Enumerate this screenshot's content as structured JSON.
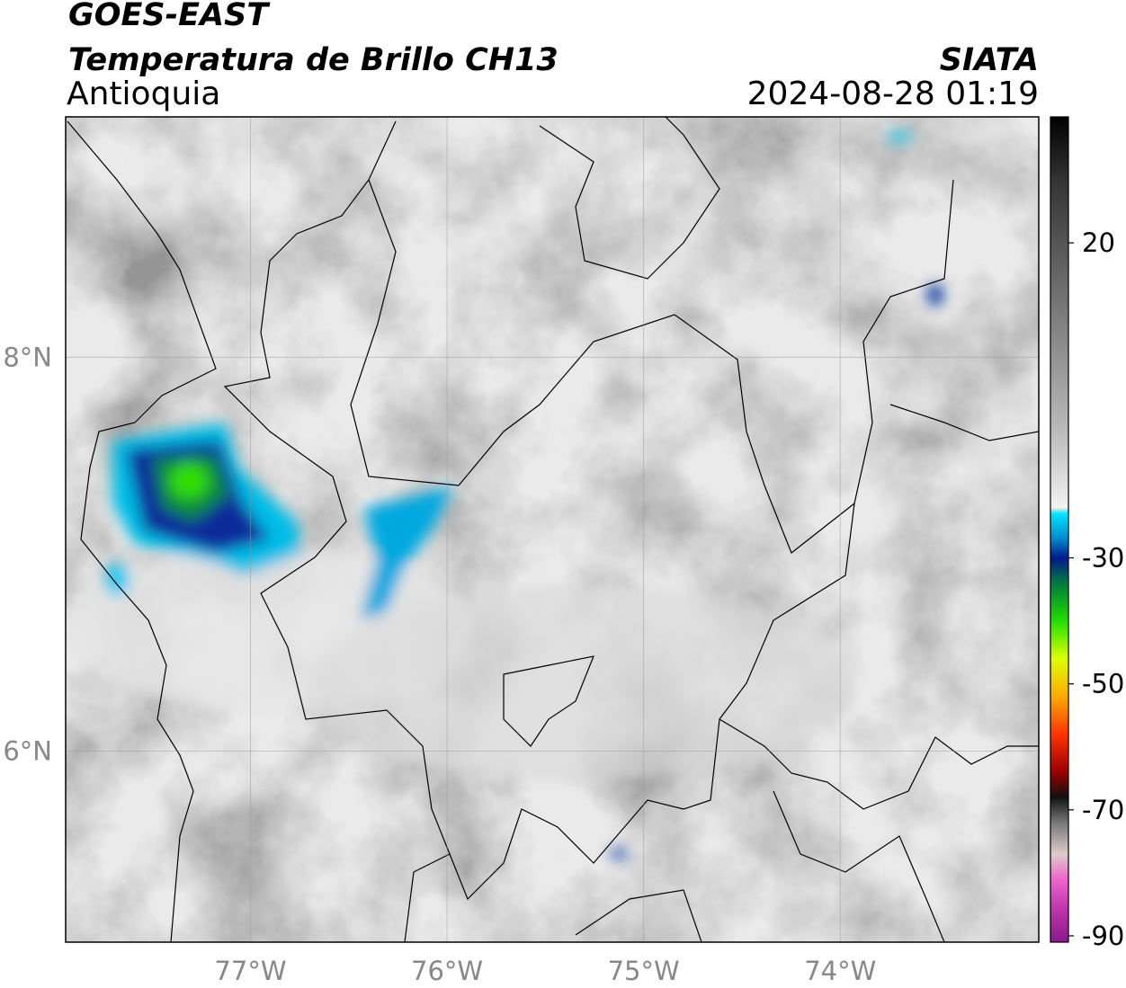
{
  "header": {
    "title": "GOES-EAST",
    "subtitle": "Temperatura de Brillo CH13",
    "region": "Antioquia",
    "source": "SIATA",
    "datetime": "2024-08-28 01:19"
  },
  "map": {
    "xlim": [
      -77.94,
      -72.99
    ],
    "ylim": [
      5.03,
      9.22
    ],
    "grid": true,
    "xticks": [
      {
        "value": -77,
        "label": "77°W"
      },
      {
        "value": -76,
        "label": "76°W"
      },
      {
        "value": -75,
        "label": "75°W"
      },
      {
        "value": -74,
        "label": "74°W"
      }
    ],
    "yticks": [
      {
        "value": 8,
        "label": "8°N"
      },
      {
        "value": 6,
        "label": "6°N"
      }
    ]
  },
  "colorbar": {
    "lim": [
      -91,
      40
    ],
    "ticks": [
      20,
      -30,
      -50,
      -70,
      -90
    ],
    "stops": [
      {
        "value": 40,
        "color": "#000000"
      },
      {
        "value": 30,
        "color": "#333333"
      },
      {
        "value": 20,
        "color": "#555555"
      },
      {
        "value": 5,
        "color": "#888888"
      },
      {
        "value": -10,
        "color": "#bbbbbb"
      },
      {
        "value": -22,
        "color": "#f2f2f2"
      },
      {
        "value": -23,
        "color": "#00e5ff"
      },
      {
        "value": -27,
        "color": "#0088cc"
      },
      {
        "value": -30,
        "color": "#001a8c"
      },
      {
        "value": -34,
        "color": "#007a3d"
      },
      {
        "value": -40,
        "color": "#22dd00"
      },
      {
        "value": -46,
        "color": "#ddff00"
      },
      {
        "value": -52,
        "color": "#ffaa00"
      },
      {
        "value": -58,
        "color": "#ff3300"
      },
      {
        "value": -64,
        "color": "#990000"
      },
      {
        "value": -68,
        "color": "#111111"
      },
      {
        "value": -72,
        "color": "#777777"
      },
      {
        "value": -77,
        "color": "#ddcccc"
      },
      {
        "value": -81,
        "color": "#ee66cc"
      },
      {
        "value": -86,
        "color": "#bb33aa"
      },
      {
        "value": -91,
        "color": "#8a1a8a"
      }
    ]
  }
}
